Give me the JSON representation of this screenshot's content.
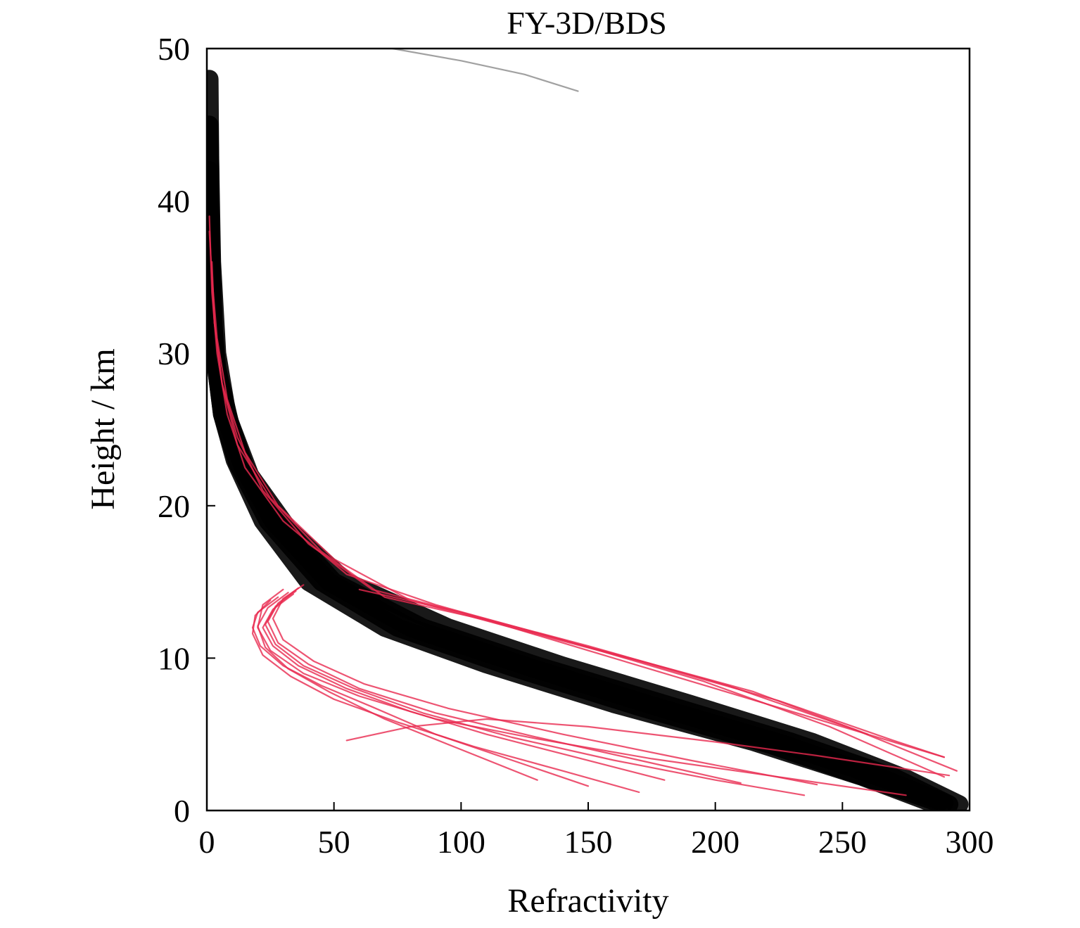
{
  "chart_data": {
    "type": "line",
    "title": "FY-3D/BDS",
    "xlabel": "Refractivity",
    "ylabel": "Height / km",
    "xlim": [
      0,
      300
    ],
    "ylim": [
      0,
      50
    ],
    "xticks": [
      0,
      50,
      100,
      150,
      200,
      250,
      300
    ],
    "yticks": [
      0,
      10,
      20,
      30,
      40,
      50
    ],
    "x_tick_labels": [
      "0",
      "50",
      "100",
      "150",
      "200",
      "250",
      "300"
    ],
    "y_tick_labels": [
      "0",
      "10",
      "20",
      "30",
      "40",
      "50"
    ],
    "grid": false,
    "legend": false,
    "colors": {
      "profiles_dense": "#000000",
      "profiles_spread": "#e8294f",
      "outlier": "#8a8a8a"
    },
    "series": [
      {
        "color": "profiles_dense",
        "x": [
          1,
          1.5,
          3,
          6,
          11,
          22,
          40,
          70,
          110,
          160,
          215,
          258,
          285
        ],
        "y": [
          48,
          38,
          30,
          26,
          23,
          19,
          15,
          12,
          9.6,
          7,
          4.5,
          2.2,
          0.5
        ]
      },
      {
        "color": "profiles_dense",
        "x": [
          1,
          2,
          4,
          8,
          15,
          28,
          50,
          85,
          130,
          180,
          230,
          270,
          292
        ],
        "y": [
          45,
          36,
          30,
          26,
          22.5,
          19,
          15,
          12,
          9.5,
          7,
          4.5,
          2.2,
          0.4
        ]
      },
      {
        "color": "profiles_dense",
        "x": [
          1,
          2,
          3,
          6,
          12,
          24,
          45,
          75,
          120,
          170,
          222,
          262,
          288
        ],
        "y": [
          40,
          34,
          30,
          26,
          22.8,
          19,
          15,
          12,
          9.4,
          6.8,
          4.3,
          2,
          0.5
        ]
      },
      {
        "color": "profiles_dense",
        "x": [
          1,
          2,
          4,
          9,
          17,
          32,
          55,
          95,
          140,
          190,
          238,
          275,
          296
        ],
        "y": [
          38,
          33,
          29,
          25.5,
          22,
          18.5,
          15,
          12,
          9.5,
          7,
          4.5,
          2.1,
          0.4
        ]
      },
      {
        "color": "profiles_dense",
        "x": [
          1,
          1.5,
          3,
          7,
          14,
          26,
          48,
          80,
          125,
          175,
          226,
          266,
          290
        ],
        "y": [
          42,
          35,
          30,
          26,
          22.6,
          19,
          15,
          12,
          9.5,
          6.9,
          4.4,
          2.1,
          0.5
        ]
      },
      {
        "color": "profiles_spread",
        "x": [
          1,
          2,
          4,
          8,
          15,
          30,
          55,
          90,
          140,
          195,
          245,
          290
        ],
        "y": [
          39,
          34,
          30,
          26,
          22.5,
          19,
          15.5,
          13.5,
          11.2,
          8.5,
          5.5,
          2.2
        ]
      },
      {
        "color": "profiles_spread",
        "x": [
          2,
          3,
          6,
          12,
          22,
          40,
          65,
          100,
          150,
          205,
          255,
          295
        ],
        "y": [
          36,
          32,
          28,
          24.5,
          21,
          17.5,
          14.5,
          13,
          10.8,
          8.2,
          5.3,
          2.6
        ]
      },
      {
        "color": "profiles_spread",
        "x": [
          1,
          3,
          6,
          12,
          25,
          45,
          70,
          110,
          160,
          215,
          260
        ],
        "y": [
          38,
          32,
          28,
          24,
          20.5,
          17,
          14,
          12.5,
          10.3,
          7.8,
          5
        ]
      },
      {
        "color": "profiles_spread",
        "x": [
          2,
          4,
          8,
          15,
          28,
          50,
          80,
          120,
          170,
          225,
          270,
          290
        ],
        "y": [
          35,
          31,
          27,
          23.5,
          20,
          16.5,
          13.8,
          12,
          9.8,
          7.2,
          4.6,
          3.5
        ]
      },
      {
        "color": "profiles_spread",
        "x": [
          30,
          22,
          20,
          25,
          38,
          60,
          90,
          130,
          175,
          225,
          275
        ],
        "y": [
          14.5,
          13.5,
          12,
          10.5,
          9,
          7.5,
          6,
          4.7,
          3.4,
          2.2,
          1
        ]
      },
      {
        "color": "profiles_spread",
        "x": [
          34,
          26,
          22,
          26,
          36,
          55,
          80,
          110,
          145,
          180
        ],
        "y": [
          14.2,
          13.2,
          12,
          10.8,
          9.5,
          8,
          6.5,
          5,
          3.5,
          2
        ]
      },
      {
        "color": "profiles_spread",
        "x": [
          28,
          20,
          18,
          21,
          30,
          45,
          65,
          90,
          120,
          150
        ],
        "y": [
          14,
          13,
          12,
          10.8,
          9.5,
          8.2,
          6.8,
          5,
          3.3,
          1.6
        ]
      },
      {
        "color": "profiles_spread",
        "x": [
          36,
          28,
          24,
          28,
          40,
          60,
          90,
          130,
          170,
          210
        ],
        "y": [
          14.6,
          13.6,
          12.4,
          11,
          9.6,
          8,
          6.4,
          4.8,
          3.3,
          1.8
        ]
      },
      {
        "color": "profiles_spread",
        "x": [
          32,
          24,
          20,
          23,
          32,
          48,
          70,
          100,
          130
        ],
        "y": [
          14.3,
          13.3,
          12.1,
          10.7,
          9.3,
          7.8,
          6,
          4,
          2
        ]
      },
      {
        "color": "profiles_spread",
        "x": [
          38,
          30,
          26,
          30,
          42,
          62,
          95,
          140,
          190,
          240
        ],
        "y": [
          14.8,
          13.9,
          12.6,
          11.2,
          9.8,
          8.3,
          6.7,
          5,
          3.3,
          1.7
        ]
      },
      {
        "color": "profiles_spread",
        "x": [
          25,
          19,
          18,
          22,
          33,
          50,
          75,
          105,
          140,
          170
        ],
        "y": [
          13.8,
          12.8,
          11.6,
          10.2,
          8.8,
          7.3,
          5.8,
          4.2,
          2.6,
          1.2
        ]
      },
      {
        "color": "profiles_spread",
        "x": [
          35,
          27,
          23,
          27,
          38,
          58,
          85,
          120,
          160,
          200,
          235
        ],
        "y": [
          14.4,
          13.4,
          12.2,
          10.9,
          9.5,
          8,
          6.4,
          4.8,
          3.3,
          2,
          1
        ]
      },
      {
        "color": "profiles_spread",
        "x": [
          55,
          80,
          110,
          150,
          200,
          240,
          280,
          292
        ],
        "y": [
          4.6,
          5.5,
          6,
          5.5,
          4.5,
          3.6,
          2.6,
          2.3
        ]
      },
      {
        "color": "profiles_spread",
        "x": [
          60,
          100,
          150,
          200,
          250,
          290
        ],
        "y": [
          14.5,
          13,
          10.5,
          8,
          5.5,
          3.5
        ]
      },
      {
        "color": "outlier",
        "x": [
          73,
          100,
          125,
          146
        ],
        "y": [
          50,
          49.2,
          48.3,
          47.2
        ]
      }
    ]
  }
}
